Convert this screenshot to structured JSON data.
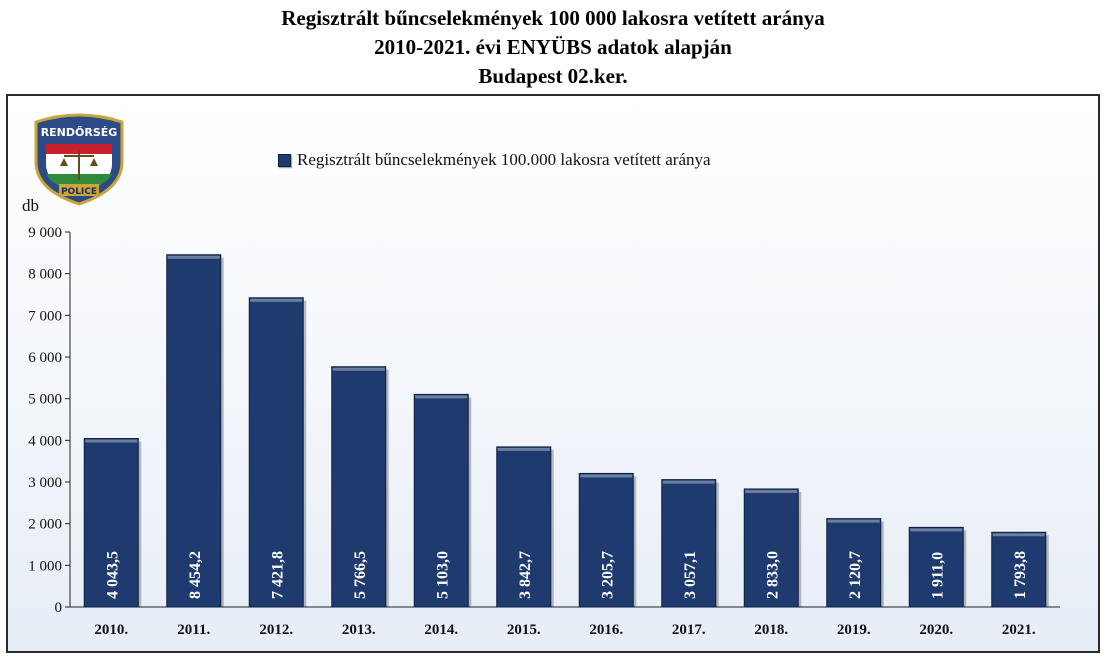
{
  "title": {
    "line1": "Regisztrált bűncselekmények 100 000 lakosra vetített aránya",
    "line2": "2010-2021. évi ENYÜBS adatok alapján",
    "line3": "Budapest 02.ker."
  },
  "logo": {
    "top_text": "RENDŐRSÉG",
    "bottom_text": "POLICE"
  },
  "colors": {
    "bar": "#1e3a6e",
    "bar_edge": "#0d1f42",
    "label": "#ffffff"
  },
  "chart_data": {
    "type": "bar",
    "title": "Regisztrált bűncselekmények 100 000 lakosra vetített aránya",
    "ylabel": "db",
    "xlabel": "",
    "legend": "top",
    "grid": false,
    "ylim": [
      0,
      9000
    ],
    "yticks": [
      "0",
      "1 000",
      "2 000",
      "3 000",
      "4 000",
      "5 000",
      "6 000",
      "7 000",
      "8 000",
      "9 000"
    ],
    "categories": [
      "2010.",
      "2011.",
      "2012.",
      "2013.",
      "2014.",
      "2015.",
      "2016.",
      "2017.",
      "2018.",
      "2019.",
      "2020.",
      "2021."
    ],
    "series": [
      {
        "name": "Regisztrált bűncselekmények 100.000 lakosra vetített aránya",
        "values": [
          4043.5,
          8454.2,
          7421.8,
          5766.5,
          5103.0,
          3842.7,
          3205.7,
          3057.1,
          2833.0,
          2120.7,
          1911.0,
          1793.8
        ],
        "labels": [
          "4 043,5",
          "8 454,2",
          "7 421,8",
          "5 766,5",
          "5 103,0",
          "3 842,7",
          "3 205,7",
          "3 057,1",
          "2 833,0",
          "2 120,7",
          "1 911,0",
          "1 793,8"
        ]
      }
    ]
  }
}
